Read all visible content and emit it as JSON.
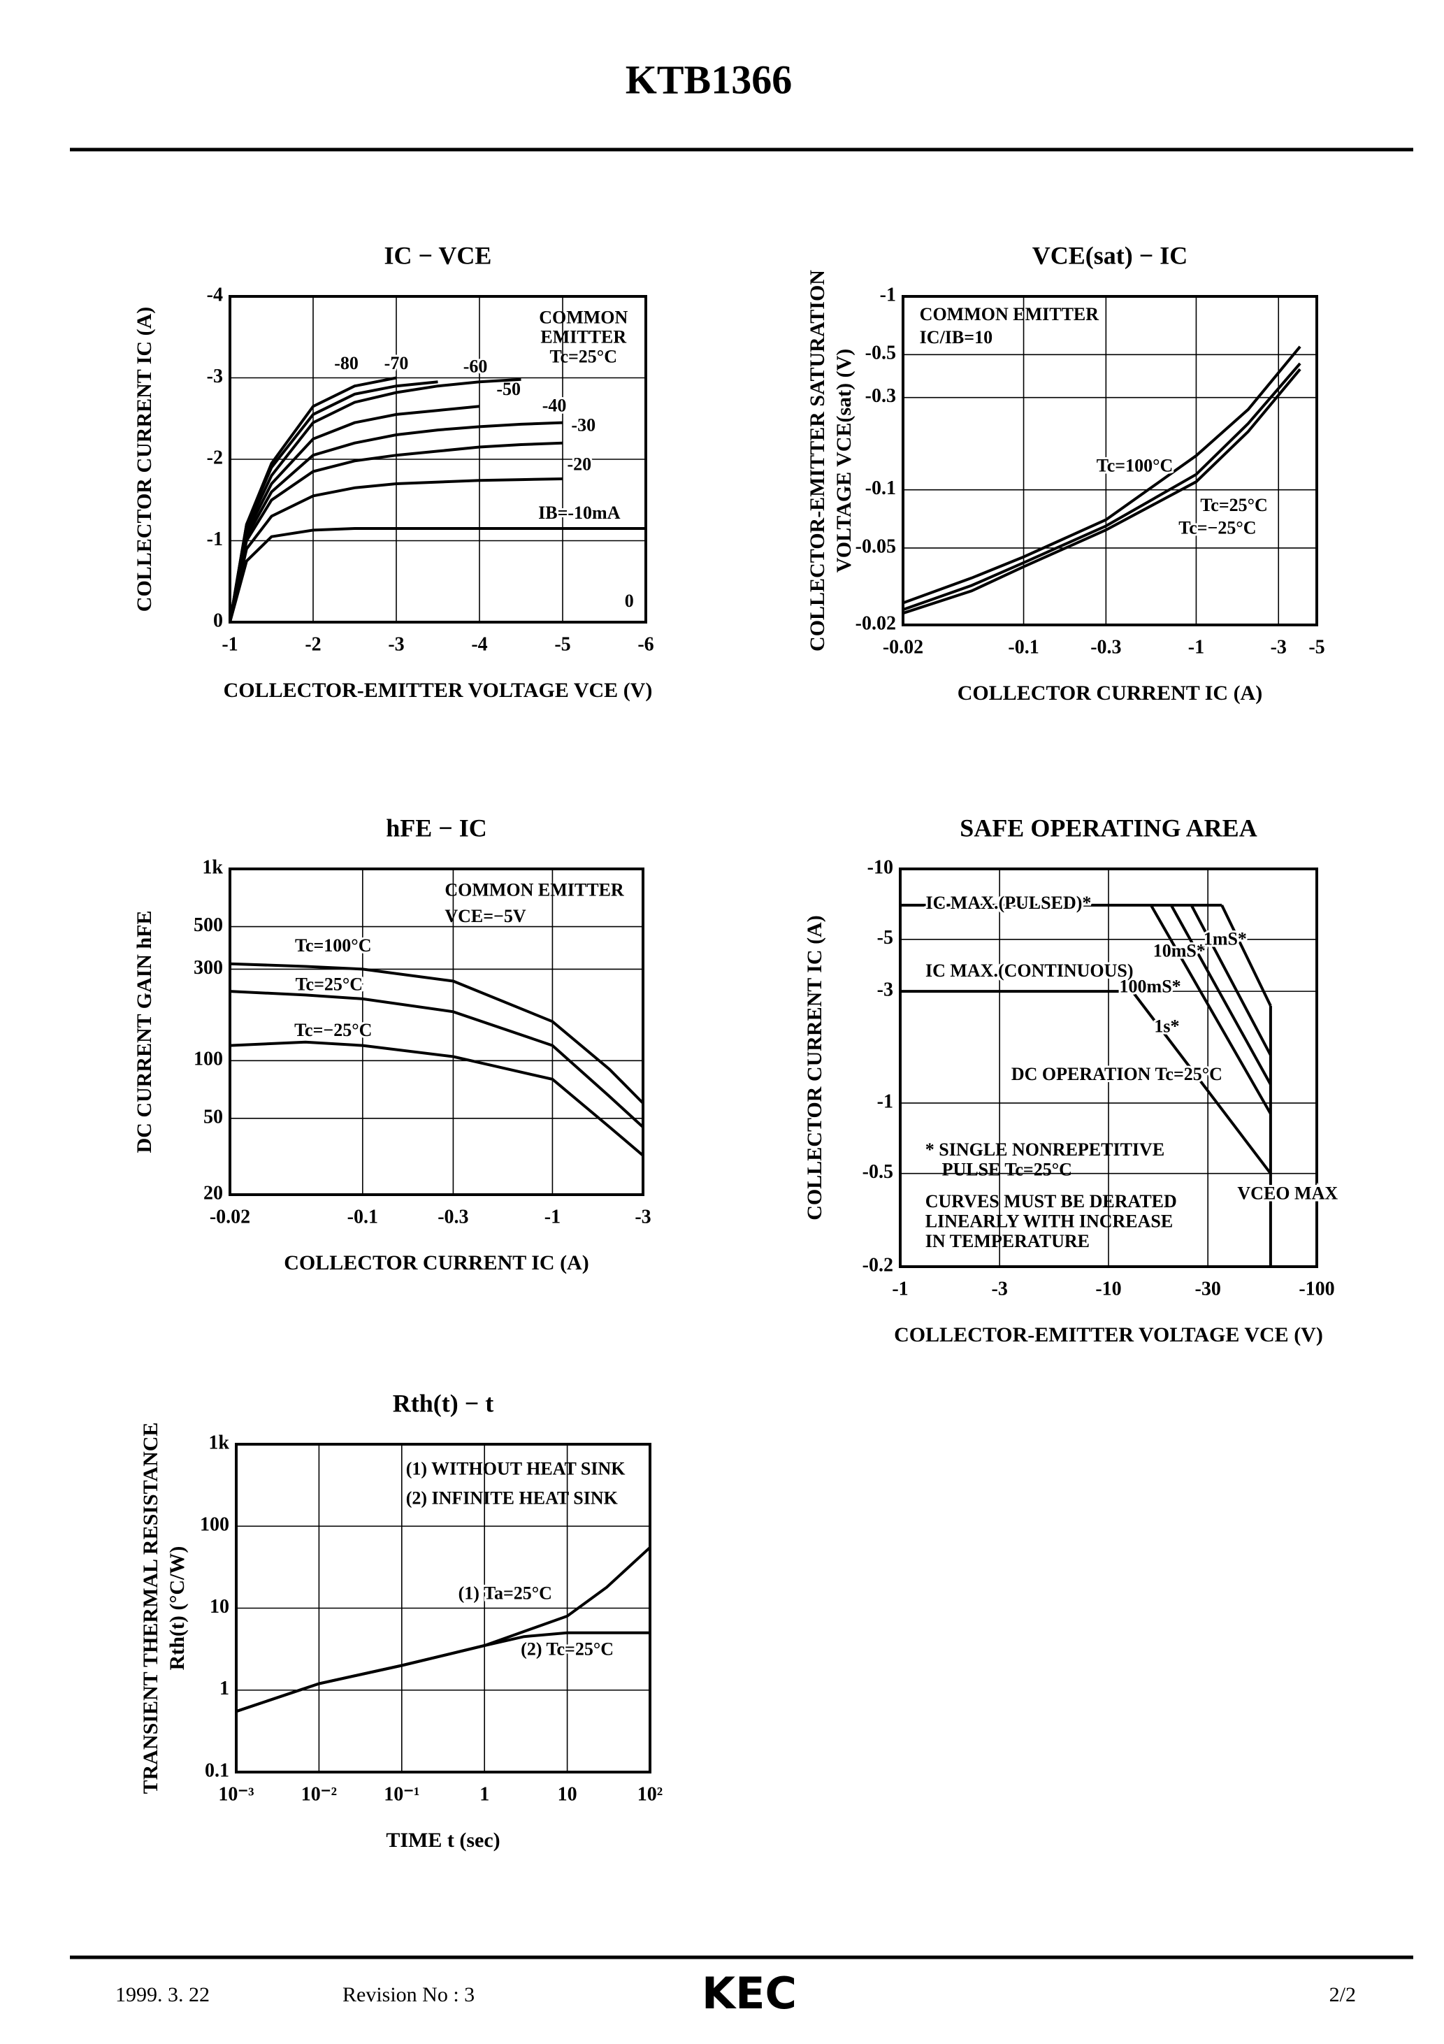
{
  "header": {
    "title": "KTB1366"
  },
  "footer": {
    "date": "1999. 3. 22",
    "revision": "Revision No : 3",
    "logo": "KEC",
    "page": "2/2"
  },
  "chart_data": [
    {
      "type": "line",
      "title": "IC − VCE",
      "xlabel": "COLLECTOR-EMITTER VOLTAGE VCE  (V)",
      "ylabel": "COLLECTOR CURRENT IC  (A)",
      "xlim": [
        -1,
        -6
      ],
      "xticks": [
        -1,
        -2,
        -3,
        -4,
        -5,
        -6
      ],
      "ylim": [
        0,
        -4
      ],
      "yticks": [
        0,
        -1,
        -2,
        -3,
        -4
      ],
      "grid": true,
      "log": false,
      "annotations": [
        "COMMON",
        "EMITTER",
        "Tc=25°C"
      ],
      "x": [
        -1,
        -1.2,
        -1.5,
        -2,
        -2.5,
        -3,
        -3.5,
        -4,
        -4.5,
        -5,
        -5.5,
        -6
      ],
      "series": [
        {
          "name": "IB=-10mA",
          "color": "#000000",
          "values": [
            0,
            -0.75,
            -1.05,
            -1.13,
            -1.15,
            -1.15,
            -1.15,
            -1.15,
            -1.15,
            -1.15,
            -1.15,
            -1.15
          ]
        },
        {
          "name": "-20",
          "color": "#000000",
          "values": [
            0,
            -0.9,
            -1.3,
            -1.55,
            -1.65,
            -1.7,
            -1.72,
            -1.74,
            -1.75,
            -1.76,
            null,
            null
          ]
        },
        {
          "name": "-30",
          "color": "#000000",
          "values": [
            0,
            -1.0,
            -1.5,
            -1.85,
            -1.98,
            -2.05,
            -2.1,
            -2.15,
            -2.18,
            -2.2,
            null,
            null
          ]
        },
        {
          "name": "-40",
          "color": "#000000",
          "values": [
            0,
            -1.05,
            -1.6,
            -2.05,
            -2.2,
            -2.3,
            -2.36,
            -2.4,
            -2.43,
            -2.45,
            null,
            null
          ]
        },
        {
          "name": "-50",
          "color": "#000000",
          "values": [
            0,
            -1.1,
            -1.7,
            -2.25,
            -2.45,
            -2.55,
            -2.6,
            -2.65,
            null,
            null,
            null,
            null
          ]
        },
        {
          "name": "-60",
          "color": "#000000",
          "values": [
            0,
            -1.15,
            -1.8,
            -2.45,
            -2.7,
            -2.82,
            -2.9,
            -2.95,
            -2.98,
            null,
            null,
            null
          ]
        },
        {
          "name": "-70",
          "color": "#000000",
          "values": [
            0,
            -1.2,
            -1.9,
            -2.55,
            -2.8,
            -2.9,
            -2.95,
            null,
            null,
            null,
            null,
            null
          ]
        },
        {
          "name": "-80",
          "color": "#000000",
          "values": [
            0,
            -1.2,
            -1.95,
            -2.65,
            -2.9,
            -3.0,
            null,
            null,
            null,
            null,
            null,
            null
          ]
        },
        {
          "name": "0",
          "color": "#000000",
          "values": [
            0,
            0,
            0,
            0,
            0,
            0,
            0,
            0,
            0,
            0,
            0,
            0
          ]
        }
      ]
    },
    {
      "type": "line",
      "title": "VCE(sat) − IC",
      "xlabel": "COLLECTOR CURRENT IC  (A)",
      "ylabel": [
        "COLLECTOR-EMITTER SATURATION",
        "VOLTAGE VCE(sat) (V)"
      ],
      "xlim": [
        -0.02,
        -5
      ],
      "xticks": [
        -0.02,
        -0.1,
        -0.3,
        -1,
        -3,
        -5
      ],
      "ylim": [
        -0.02,
        -1
      ],
      "yticks": [
        -0.02,
        -0.05,
        -0.1,
        -0.3,
        -0.5,
        -1
      ],
      "grid": true,
      "log": true,
      "annotations": [
        "COMMON EMITTER",
        "IC/IB=10"
      ],
      "x": [
        -0.02,
        -0.05,
        -0.1,
        -0.3,
        -1,
        -2,
        -4
      ],
      "series": [
        {
          "name": "Tc=100°C",
          "color": "#000000",
          "values": [
            -0.026,
            -0.035,
            -0.045,
            -0.07,
            -0.15,
            -0.26,
            -0.55
          ]
        },
        {
          "name": "Tc=25°C",
          "color": "#000000",
          "values": [
            -0.024,
            -0.032,
            -0.042,
            -0.065,
            -0.12,
            -0.22,
            -0.45
          ]
        },
        {
          "name": "Tc=−25°C",
          "color": "#000000",
          "values": [
            -0.023,
            -0.03,
            -0.04,
            -0.062,
            -0.11,
            -0.2,
            -0.42
          ]
        }
      ]
    },
    {
      "type": "line",
      "title": "hFE − IC",
      "xlabel": "COLLECTOR CURRENT IC  (A)",
      "ylabel": "DC CURRENT GAIN hFE",
      "xlim": [
        -0.02,
        -3
      ],
      "xticks": [
        -0.02,
        -0.1,
        -0.3,
        -1,
        -3
      ],
      "ylim": [
        20,
        1000
      ],
      "yticks": [
        20,
        50,
        100,
        300,
        500,
        {
          "value": 1000,
          "label": "1k"
        }
      ],
      "grid": true,
      "log": true,
      "annotations": [
        "COMMON EMITTER",
        "VCE=−5V"
      ],
      "x": [
        -0.02,
        -0.05,
        -0.1,
        -0.3,
        -1,
        -2,
        -3
      ],
      "series": [
        {
          "name": "Tc=100°C",
          "color": "#000000",
          "values": [
            320,
            310,
            300,
            260,
            160,
            90,
            60
          ]
        },
        {
          "name": "Tc=25°C",
          "color": "#000000",
          "values": [
            230,
            220,
            210,
            180,
            120,
            65,
            45
          ]
        },
        {
          "name": "Tc=−25°C",
          "color": "#000000",
          "values": [
            120,
            125,
            120,
            105,
            80,
            45,
            32
          ]
        }
      ]
    },
    {
      "type": "line",
      "title": "SAFE OPERATING AREA",
      "xlabel": "COLLECTOR-EMITTER VOLTAGE VCE  (V)",
      "ylabel": "COLLECTOR CURRENT IC  (A)",
      "xlim": [
        -1,
        -100
      ],
      "xticks": [
        -1,
        -3,
        -10,
        -30,
        -100
      ],
      "ylim": [
        -0.2,
        -10
      ],
      "yticks": [
        -0.2,
        -0.5,
        -1,
        -3,
        -5,
        -10
      ],
      "grid": true,
      "log": true,
      "annotations": [
        "* SINGLE NONREPETITIVE",
        "PULSE Tc=25°C",
        "CURVES MUST BE DERATED",
        "LINEARLY WITH INCREASE",
        "IN TEMPERATURE"
      ],
      "series": [
        {
          "name": "IC MAX.(PULSED)*",
          "color": "#000000",
          "x": [
            -1,
            -35
          ],
          "values": [
            -7,
            -7
          ]
        },
        {
          "name": "IC MAX.(CONTINUOUS)",
          "color": "#000000",
          "x": [
            -1,
            -13
          ],
          "values": [
            -3,
            -3
          ]
        },
        {
          "name": "DC OPERATION Tc=25°C",
          "color": "#000000",
          "x": [
            -13,
            -60
          ],
          "values": [
            -3,
            -0.5
          ]
        },
        {
          "name": "1s*",
          "color": "#000000",
          "x": [
            -16,
            -60
          ],
          "values": [
            -7,
            -0.9
          ]
        },
        {
          "name": "100mS*",
          "color": "#000000",
          "x": [
            -20,
            -60
          ],
          "values": [
            -7,
            -1.2
          ]
        },
        {
          "name": "10mS*",
          "color": "#000000",
          "x": [
            -25,
            -60
          ],
          "values": [
            -7,
            -1.6
          ]
        },
        {
          "name": "1mS*",
          "color": "#000000",
          "x": [
            -35,
            -60
          ],
          "values": [
            -7,
            -2.6
          ]
        },
        {
          "name": "VCEO MAX",
          "color": "#000000",
          "x": [
            -60,
            -60
          ],
          "values": [
            -2.6,
            -0.2
          ]
        }
      ]
    },
    {
      "type": "line",
      "title": "Rth(t) − t",
      "xlabel": "TIME  t  (sec)",
      "ylabel": [
        "TRANSIENT THERMAL RESISTANCE",
        "Rth(t)  (°C/W)"
      ],
      "xlim": [
        0.001,
        100
      ],
      "xticks": [
        {
          "value": 0.001,
          "label": "10⁻³"
        },
        {
          "value": 0.01,
          "label": "10⁻²"
        },
        {
          "value": 0.1,
          "label": "10⁻¹"
        },
        1,
        10,
        {
          "value": 100,
          "label": "10²"
        }
      ],
      "ylim": [
        0.1,
        1000
      ],
      "yticks": [
        0.1,
        1,
        10,
        100,
        {
          "value": 1000,
          "label": "1k"
        }
      ],
      "grid": true,
      "log": true,
      "annotations": [
        "(1) WITHOUT HEAT SINK",
        "(2) INFINITE HEAT SINK"
      ],
      "series": [
        {
          "name": "(1) Ta=25°C",
          "color": "#000000",
          "x": [
            0.001,
            0.01,
            0.1,
            1,
            10,
            30,
            100
          ],
          "values": [
            0.55,
            1.2,
            2,
            3.5,
            8,
            18,
            55
          ]
        },
        {
          "name": "(2) Tc=25°C",
          "color": "#000000",
          "x": [
            0.001,
            0.01,
            0.1,
            1,
            3,
            10,
            100
          ],
          "values": [
            0.55,
            1.2,
            2,
            3.5,
            4.5,
            5,
            5
          ]
        }
      ]
    }
  ]
}
